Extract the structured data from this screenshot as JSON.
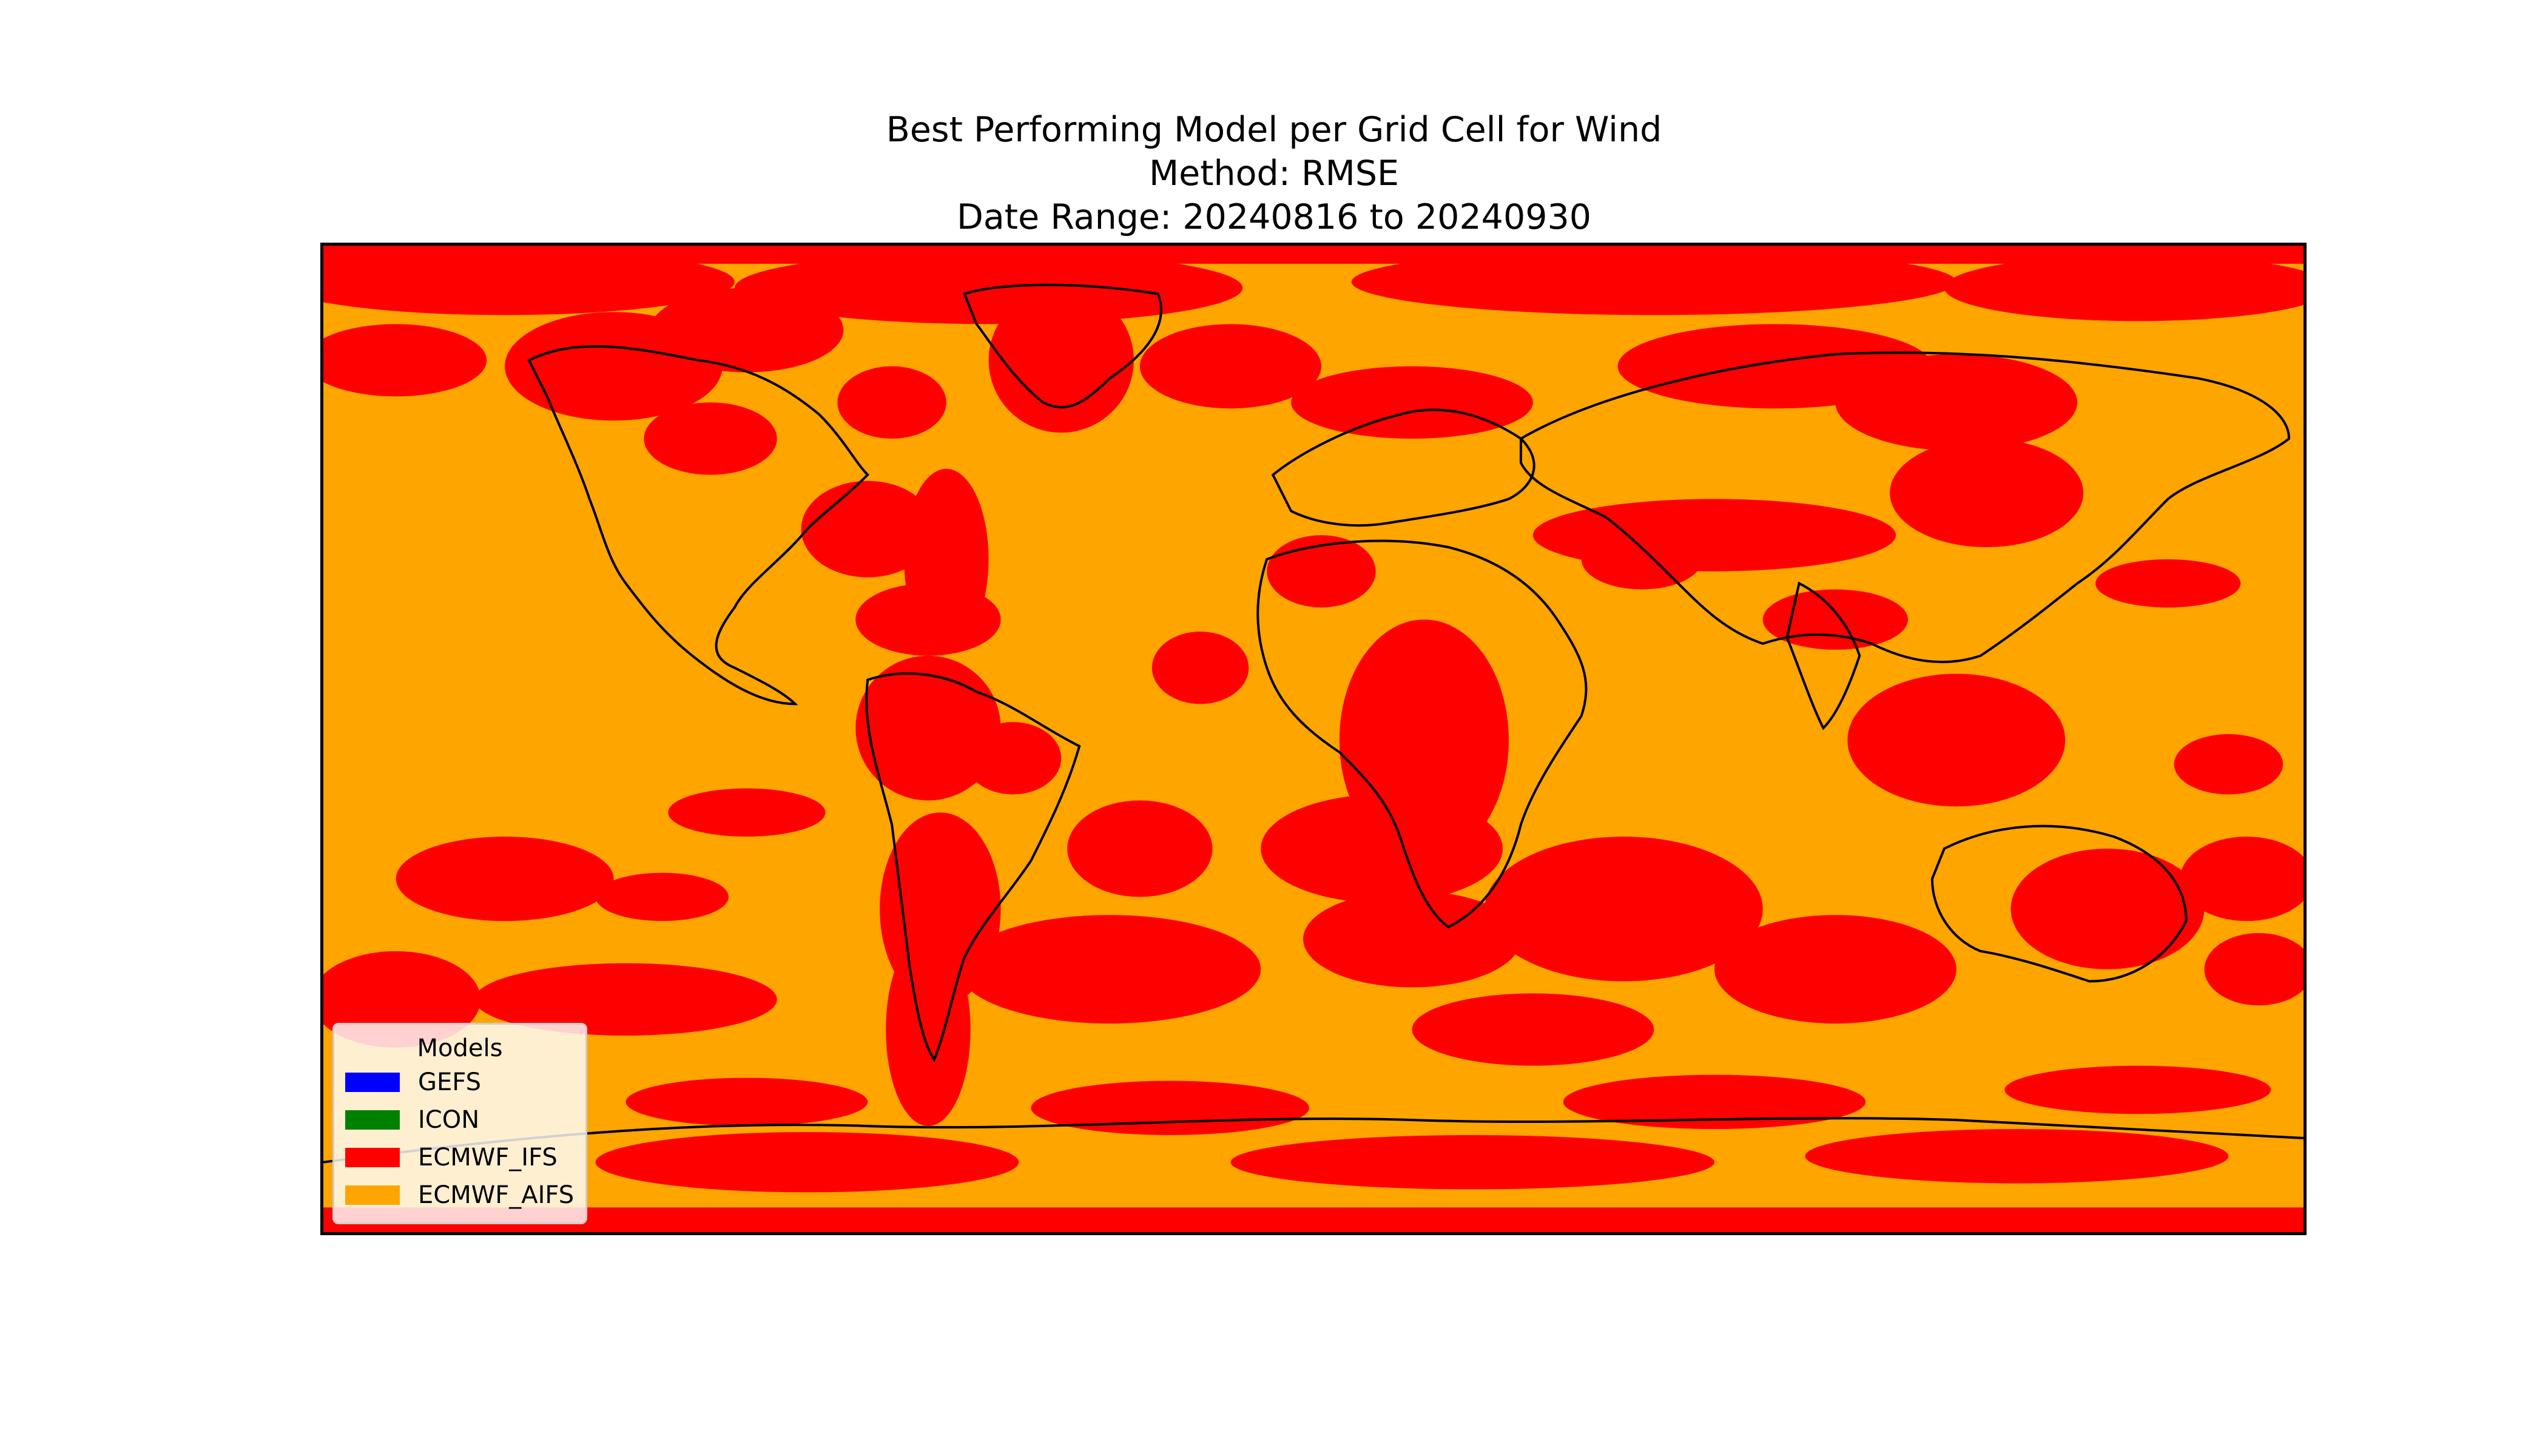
{
  "title": {
    "line1": "Best Performing Model per Grid Cell for Wind",
    "line2": "Method: RMSE",
    "line3": "Date Range: 20240816 to 20240930"
  },
  "map": {
    "background_model": "ECMWF_AIFS",
    "background_color": "#ffa500",
    "patch_model": "ECMWF_IFS",
    "patch_color": "#ff0000",
    "coastline_color": "#000000"
  },
  "legend": {
    "title": "Models",
    "items": [
      {
        "label": "GEFS",
        "color": "#0000ff"
      },
      {
        "label": "ICON",
        "color": "#008000"
      },
      {
        "label": "ECMWF_IFS",
        "color": "#ff0000"
      },
      {
        "label": "ECMWF_AIFS",
        "color": "#ffa500"
      }
    ]
  }
}
